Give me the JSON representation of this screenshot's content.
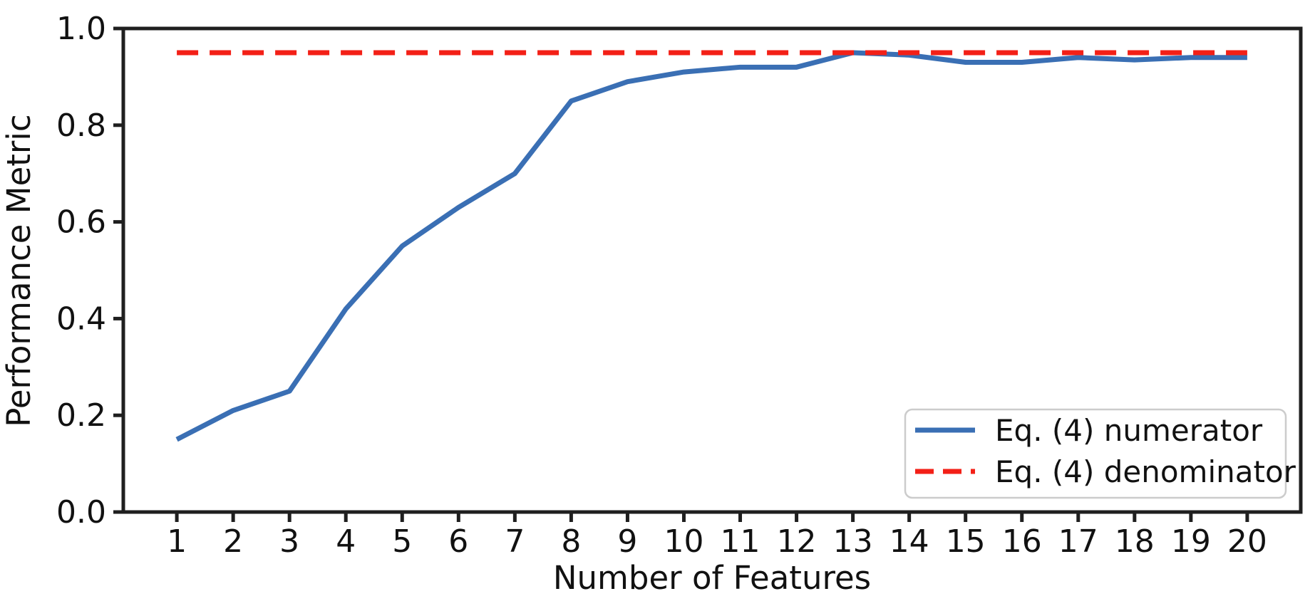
{
  "chart_data": {
    "type": "line",
    "title": "",
    "xlabel": "Number of Features",
    "ylabel": "Performance Metric",
    "x": [
      1,
      2,
      3,
      4,
      5,
      6,
      7,
      8,
      9,
      10,
      11,
      12,
      13,
      14,
      15,
      16,
      17,
      18,
      19,
      20
    ],
    "series": [
      {
        "id": "numerator-line",
        "name": "Eq. (4) numerator",
        "color": "#3a6fb4",
        "style": "solid",
        "values": [
          0.15,
          0.21,
          0.25,
          0.42,
          0.55,
          0.63,
          0.7,
          0.85,
          0.89,
          0.91,
          0.92,
          0.92,
          0.95,
          0.945,
          0.93,
          0.93,
          0.94,
          0.935,
          0.94,
          0.94
        ]
      },
      {
        "id": "denominator-line",
        "name": "Eq. (4) denominator",
        "color": "#f32017",
        "style": "dashed",
        "values": [
          0.95,
          0.95,
          0.95,
          0.95,
          0.95,
          0.95,
          0.95,
          0.95,
          0.95,
          0.95,
          0.95,
          0.95,
          0.95,
          0.95,
          0.95,
          0.95,
          0.95,
          0.95,
          0.95,
          0.95
        ]
      }
    ],
    "xlim": [
      0.05,
      20.95
    ],
    "ylim": [
      0,
      1
    ],
    "xticks": [
      1,
      2,
      3,
      4,
      5,
      6,
      7,
      8,
      9,
      10,
      11,
      12,
      13,
      14,
      15,
      16,
      17,
      18,
      19,
      20
    ],
    "yticks": [
      0,
      0.2,
      0.4,
      0.6,
      0.8,
      1
    ],
    "ytick_labels": [
      "0.0",
      "0.2",
      "0.4",
      "0.6",
      "0.8",
      "1.0"
    ],
    "grid": false,
    "legend": {
      "position": "lower right"
    },
    "axis_color": "#1f1f1f",
    "text_color": "#111111",
    "legend_border_color": "#cccccc"
  }
}
